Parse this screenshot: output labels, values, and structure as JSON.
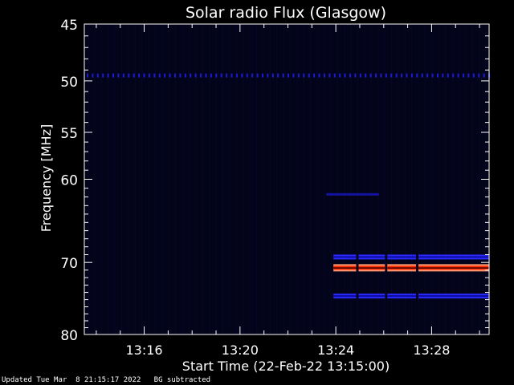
{
  "footer": {
    "updated": "Updated Tue Mar  8 21:15:17 2022",
    "note": "BG subtracted"
  },
  "chart_data": {
    "type": "heatmap",
    "title": "Solar radio Flux (Glasgow)",
    "xlabel": "Start Time (22-Feb-22 13:15:00)",
    "ylabel": "Frequency [MHz]",
    "xlim_min": [
      13.5,
      30.4
    ],
    "ylim": [
      45,
      80
    ],
    "y_scale": "log",
    "xticks": [
      {
        "label": "13:16",
        "t": 16
      },
      {
        "label": "13:20",
        "t": 20
      },
      {
        "label": "13:24",
        "t": 24
      },
      {
        "label": "13:28",
        "t": 28
      }
    ],
    "yticks": [
      45,
      50,
      55,
      60,
      70,
      80
    ],
    "colors": {
      "background": "#03031a",
      "plot_border": "#ffffff",
      "weak": "#1b1bd6",
      "medium": "#2a2aff",
      "strong_core": "#ff2a00",
      "strong_edge": "#ff9a70"
    },
    "features": [
      {
        "name": "",
        "kind": "dotted-line",
        "freq_mhz": 49.5,
        "t_start": 13.5,
        "t_end": 30.4,
        "intensity": "weak"
      },
      {
        "name": "",
        "kind": "band",
        "freq_mhz": 69.3,
        "t_start": 23.9,
        "t_end": 30.4,
        "intensity": "medium"
      },
      {
        "name": "",
        "kind": "band",
        "freq_mhz": 70.7,
        "t_start": 23.9,
        "t_end": 30.4,
        "intensity": "strong"
      },
      {
        "name": "",
        "kind": "band",
        "freq_mhz": 74.5,
        "t_start": 23.9,
        "t_end": 30.4,
        "intensity": "medium"
      },
      {
        "name": "",
        "kind": "faint-band",
        "freq_mhz": 61.7,
        "t_start": 23.6,
        "t_end": 25.8,
        "intensity": "weak"
      }
    ],
    "gaps_minutes": [
      24.9,
      26.1,
      27.4
    ]
  }
}
